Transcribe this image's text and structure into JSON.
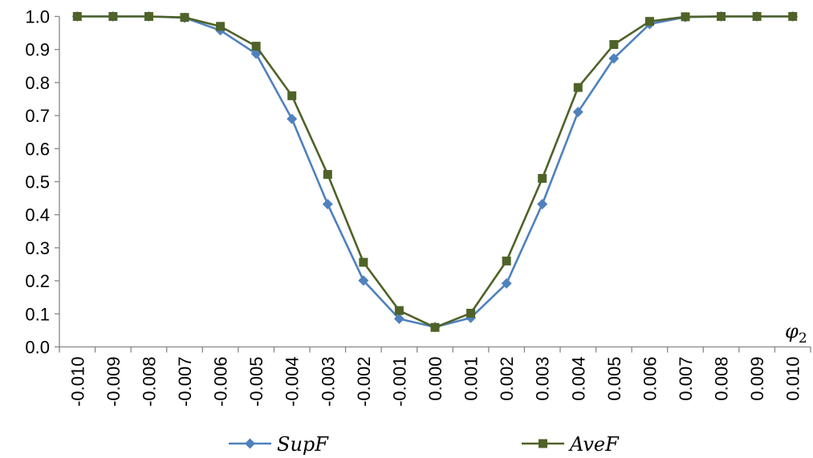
{
  "chart_data": {
    "type": "line",
    "xlabel": "φ2",
    "x_categories": [
      "-0.010",
      "-0.009",
      "-0.008",
      "-0.007",
      "-0.006",
      "-0.005",
      "-0.004",
      "-0.003",
      "-0.002",
      "-0.001",
      "0.000",
      "0.001",
      "0.002",
      "0.003",
      "0.004",
      "0.005",
      "0.006",
      "0.007",
      "0.008",
      "0.009",
      "0.010"
    ],
    "ylim": [
      0,
      1
    ],
    "y_ticks": [
      "0.0",
      "0.1",
      "0.2",
      "0.3",
      "0.4",
      "0.5",
      "0.6",
      "0.7",
      "0.8",
      "0.9",
      "1.0"
    ],
    "grid": false,
    "legend_position": "bottom",
    "series": [
      {
        "name": "SupF",
        "color": "#4F81BD",
        "marker": "diamond",
        "values": [
          1.0,
          1.0,
          1.0,
          0.996,
          0.958,
          0.887,
          0.69,
          0.432,
          0.201,
          0.085,
          0.06,
          0.088,
          0.192,
          0.432,
          0.711,
          0.873,
          0.977,
          0.998,
          1.0,
          1.0,
          1.0
        ]
      },
      {
        "name": "AveF",
        "color": "#4F6228",
        "marker": "square",
        "values": [
          1.0,
          1.0,
          1.0,
          0.997,
          0.97,
          0.91,
          0.76,
          0.522,
          0.256,
          0.11,
          0.059,
          0.102,
          0.26,
          0.51,
          0.785,
          0.915,
          0.985,
          0.999,
          1.0,
          1.0,
          1.0
        ]
      }
    ]
  }
}
